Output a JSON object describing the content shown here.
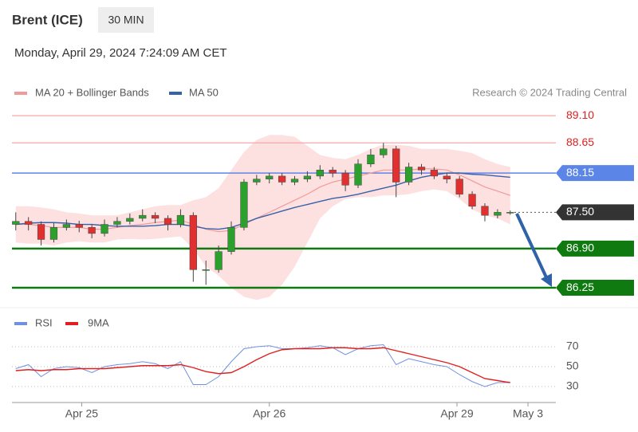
{
  "chart_data": {
    "type": "candlestick",
    "title": "Brent (ICE)",
    "timeframe": "30 MIN",
    "subtitle": "Monday, April 29, 2024 7:24:09 AM CET",
    "credit": "Research © 2024 Trading Central",
    "xlim": [
      -0.3,
      42.6
    ],
    "ylim": [
      86.0,
      89.3
    ],
    "xticks": [
      {
        "value": 5.2,
        "label": "Apr 25"
      },
      {
        "value": 20,
        "label": "Apr 26"
      },
      {
        "value": 34.8,
        "label": "Apr 29"
      },
      {
        "value": 40.4,
        "label": "May 3"
      }
    ],
    "up_color": "#2ca02c",
    "down_color": "#e03030",
    "candles": [
      [
        87.3,
        87.5,
        87.2,
        87.35
      ],
      [
        87.35,
        87.42,
        87.2,
        87.3
      ],
      [
        87.3,
        87.35,
        86.95,
        87.05
      ],
      [
        87.05,
        87.32,
        87.0,
        87.25
      ],
      [
        87.25,
        87.38,
        87.2,
        87.3
      ],
      [
        87.3,
        87.36,
        87.17,
        87.25
      ],
      [
        87.25,
        87.3,
        87.07,
        87.15
      ],
      [
        87.15,
        87.38,
        87.1,
        87.3
      ],
      [
        87.3,
        87.42,
        87.25,
        87.35
      ],
      [
        87.35,
        87.48,
        87.3,
        87.4
      ],
      [
        87.4,
        87.55,
        87.35,
        87.45
      ],
      [
        87.45,
        87.5,
        87.32,
        87.4
      ],
      [
        87.4,
        87.45,
        87.2,
        87.3
      ],
      [
        87.3,
        87.55,
        87.25,
        87.45
      ],
      [
        87.45,
        87.5,
        86.35,
        86.55
      ],
      [
        86.55,
        86.7,
        86.3,
        86.55
      ],
      [
        86.55,
        86.95,
        86.5,
        86.85
      ],
      [
        86.85,
        87.35,
        86.8,
        87.25
      ],
      [
        87.25,
        88.05,
        87.2,
        88.0
      ],
      [
        88.0,
        88.12,
        87.95,
        88.05
      ],
      [
        88.05,
        88.15,
        87.98,
        88.1
      ],
      [
        88.1,
        88.15,
        87.95,
        88.0
      ],
      [
        88.0,
        88.1,
        87.95,
        88.05
      ],
      [
        88.05,
        88.18,
        88.0,
        88.1
      ],
      [
        88.1,
        88.28,
        88.05,
        88.2
      ],
      [
        88.2,
        88.25,
        88.08,
        88.15
      ],
      [
        88.15,
        88.2,
        87.85,
        87.95
      ],
      [
        87.95,
        88.38,
        87.9,
        88.3
      ],
      [
        88.3,
        88.55,
        88.25,
        88.45
      ],
      [
        88.45,
        88.65,
        88.4,
        88.55
      ],
      [
        88.55,
        88.6,
        87.75,
        88.0
      ],
      [
        88.0,
        88.32,
        87.95,
        88.25
      ],
      [
        88.25,
        88.3,
        88.12,
        88.2
      ],
      [
        88.2,
        88.25,
        88.05,
        88.1
      ],
      [
        88.1,
        88.15,
        87.98,
        88.05
      ],
      [
        88.05,
        88.1,
        87.75,
        87.8
      ],
      [
        87.8,
        87.85,
        87.55,
        87.6
      ],
      [
        87.6,
        87.65,
        87.35,
        87.45
      ],
      [
        87.45,
        87.55,
        87.4,
        87.5
      ],
      [
        87.5,
        87.53,
        87.46,
        87.5
      ]
    ],
    "series": [
      {
        "name": "MA 20 + Bollinger Bands",
        "color": "#f29a9a",
        "values": [
          87.3,
          87.3,
          87.28,
          87.25,
          87.25,
          87.25,
          87.22,
          87.22,
          87.25,
          87.28,
          87.3,
          87.33,
          87.35,
          87.37,
          87.3,
          87.22,
          87.18,
          87.2,
          87.3,
          87.4,
          87.5,
          87.6,
          87.7,
          87.8,
          87.92,
          88.0,
          88.05,
          88.1,
          88.15,
          88.2,
          88.2,
          88.2,
          88.22,
          88.22,
          88.2,
          88.12,
          88.02,
          87.92,
          87.85,
          87.78
        ],
        "upper": [
          87.6,
          87.6,
          87.58,
          87.55,
          87.5,
          87.48,
          87.45,
          87.45,
          87.45,
          87.5,
          87.55,
          87.6,
          87.62,
          87.62,
          87.7,
          87.75,
          87.9,
          88.2,
          88.5,
          88.7,
          88.78,
          88.78,
          88.75,
          88.6,
          88.45,
          88.4,
          88.38,
          88.45,
          88.55,
          88.62,
          88.62,
          88.6,
          88.55,
          88.55,
          88.55,
          88.52,
          88.48,
          88.38,
          88.3,
          88.25
        ],
        "lower": [
          87.0,
          86.98,
          86.98,
          86.95,
          87.0,
          87.02,
          87.0,
          87.0,
          87.05,
          87.06,
          87.05,
          87.06,
          87.08,
          87.1,
          86.9,
          86.6,
          86.45,
          86.25,
          86.1,
          86.05,
          86.1,
          86.3,
          86.6,
          87.0,
          87.4,
          87.6,
          87.72,
          87.75,
          87.75,
          87.78,
          87.78,
          87.8,
          87.85,
          87.88,
          87.85,
          87.72,
          87.55,
          87.45,
          87.4,
          87.3
        ],
        "band_color": "#fcd6d6"
      },
      {
        "name": "MA 50",
        "color": "#3562aa",
        "values": [
          87.3,
          87.32,
          87.33,
          87.33,
          87.32,
          87.3,
          87.3,
          87.28,
          87.27,
          87.27,
          87.27,
          87.28,
          87.3,
          87.3,
          87.27,
          87.23,
          87.22,
          87.25,
          87.32,
          87.4,
          87.46,
          87.52,
          87.58,
          87.63,
          87.68,
          87.73,
          87.76,
          87.8,
          87.85,
          87.9,
          87.95,
          88.02,
          88.08,
          88.12,
          88.15,
          88.15,
          88.13,
          88.12,
          88.1,
          88.08
        ]
      }
    ],
    "levels": [
      {
        "value": 89.1,
        "label": "89.10",
        "color": "#f4a8a8",
        "text_color": "#e02020",
        "box": false,
        "dotted": false,
        "width": 1.2
      },
      {
        "value": 88.65,
        "label": "88.65",
        "color": "#f4a8a8",
        "text_color": "#e02020",
        "box": false,
        "dotted": false,
        "width": 1.2
      },
      {
        "value": 88.15,
        "label": "88.15",
        "color": "#5b86e8",
        "text_color": "#ffffff",
        "box": true,
        "dotted": false,
        "width": 1.5
      },
      {
        "value": 87.5,
        "label": "87.50",
        "color": "#333333",
        "text_color": "#ffffff",
        "box": true,
        "dotted": true,
        "width": 1
      },
      {
        "value": 86.9,
        "label": "86.90",
        "color": "#0f7a0f",
        "text_color": "#ffffff",
        "box": true,
        "dotted": false,
        "width": 2.5
      },
      {
        "value": 86.25,
        "label": "86.25",
        "color": "#0f7a0f",
        "text_color": "#ffffff",
        "box": true,
        "dotted": false,
        "width": 2.5
      }
    ],
    "rsi": {
      "ylim": [
        18,
        82
      ],
      "yticks": [
        30,
        50,
        70
      ],
      "series": [
        {
          "name": "RSI",
          "color": "#7090e0",
          "values": [
            48,
            52,
            40,
            48,
            50,
            49,
            44,
            50,
            52,
            53,
            55,
            53,
            48,
            55,
            32,
            32,
            40,
            55,
            68,
            70,
            71,
            68,
            68,
            69,
            71,
            69,
            62,
            68,
            71,
            72,
            52,
            58,
            55,
            52,
            50,
            42,
            35,
            30,
            34,
            34
          ]
        },
        {
          "name": "9MA",
          "color": "#e02020",
          "values": [
            46,
            47,
            46,
            47,
            47,
            48,
            48,
            48,
            49,
            50,
            51,
            51,
            51,
            52,
            49,
            45,
            43,
            44,
            50,
            57,
            63,
            67,
            68,
            68,
            68,
            69,
            69,
            68,
            68,
            69,
            66,
            63,
            60,
            57,
            54,
            50,
            44,
            38,
            36,
            34
          ]
        }
      ]
    }
  }
}
